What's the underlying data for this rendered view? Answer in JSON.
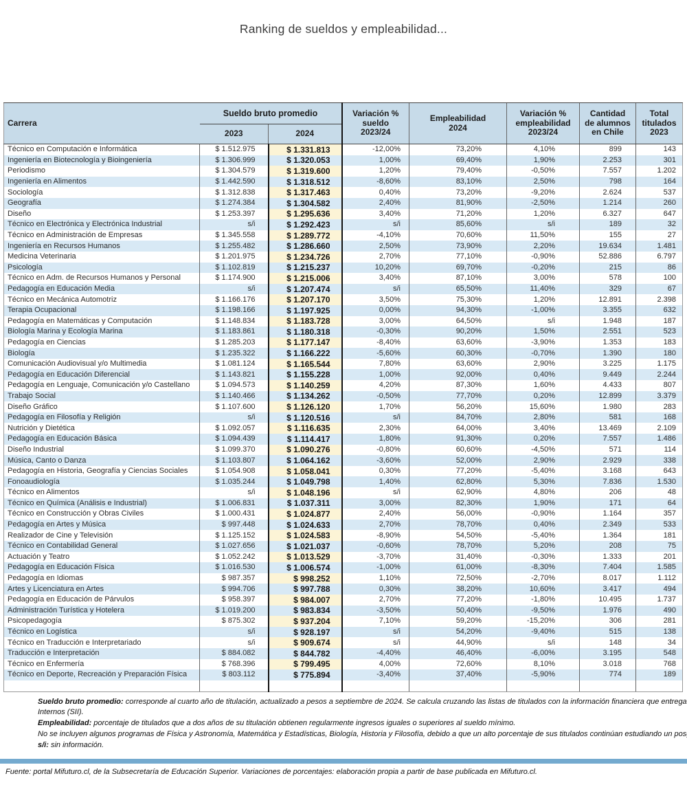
{
  "title": "Ranking de sueldos y empleabilidad...",
  "colors": {
    "header_bg": "#c7dbe9",
    "row_stripe": "#d8e9f5",
    "col2024_highlight": "#fcf4d6",
    "col2024_border": "#111111",
    "separator_bar": "#74aacf"
  },
  "table": {
    "headers": {
      "carrera": "Carrera",
      "sueldo_group": "Sueldo bruto promedio",
      "y2023": "2023",
      "y2024": "2024",
      "var_sueldo": "Variación %\nsueldo\n2023/24",
      "empleabilidad": "Empleabilidad\n2024",
      "var_empleabilidad": "Variación %\nempleabilidad\n2023/24",
      "alumnos": "Cantidad\nde alumnos\nen Chile",
      "titulados": "Total\ntitulados\n2023"
    },
    "rows": [
      [
        "Técnico en Computación e Informática",
        "$ 1.512.975",
        "$ 1.331.813",
        "-12,00%",
        "73,20%",
        "4,10%",
        "899",
        "143"
      ],
      [
        "Ingeniería en Biotecnología y Bioingeniería",
        "$ 1.306.999",
        "$ 1.320.053",
        "1,00%",
        "69,40%",
        "1,90%",
        "2.253",
        "301"
      ],
      [
        "Periodismo",
        "$ 1.304.579",
        "$ 1.319.600",
        "1,20%",
        "79,40%",
        "-0,50%",
        "7.557",
        "1.202"
      ],
      [
        "Ingeniería en Alimentos",
        "$ 1.442.590",
        "$ 1.318.512",
        "-8,60%",
        "83,10%",
        "2,50%",
        "798",
        "164"
      ],
      [
        "Sociología",
        "$ 1.312.838",
        "$ 1.317.463",
        "0,40%",
        "73,20%",
        "-9,20%",
        "2.624",
        "537"
      ],
      [
        "Geografía",
        "$ 1.274.384",
        "$ 1.304.582",
        "2,40%",
        "81,90%",
        "-2,50%",
        "1.214",
        "260"
      ],
      [
        "Diseño",
        "$ 1.253.397",
        "$ 1.295.636",
        "3,40%",
        "71,20%",
        "1,20%",
        "6.327",
        "647"
      ],
      [
        "Técnico en Electrónica y Electrónica Industrial",
        "s/i",
        "$ 1.292.423",
        "s/i",
        "85,60%",
        "s/i",
        "189",
        "32"
      ],
      [
        "Técnico en Administración de Empresas",
        "$ 1.345.558",
        "$ 1.289.772",
        "-4,10%",
        "70,60%",
        "11,50%",
        "155",
        "27"
      ],
      [
        "Ingeniería en Recursos Humanos",
        "$ 1.255.482",
        "$ 1.286.660",
        "2,50%",
        "73,90%",
        "2,20%",
        "19.634",
        "1.481"
      ],
      [
        "Medicina Veterinaria",
        "$ 1.201.975",
        "$ 1.234.726",
        "2,70%",
        "77,10%",
        "-0,90%",
        "52.886",
        "6.797"
      ],
      [
        "Psicología",
        "$ 1.102.819",
        "$ 1.215.237",
        "10,20%",
        "69,70%",
        "-0,20%",
        "215",
        "86"
      ],
      [
        "Técnico en Adm. de Recursos Humanos y Personal",
        "$ 1.174.900",
        "$ 1.215.006",
        "3,40%",
        "87,10%",
        "3,00%",
        "578",
        "100"
      ],
      [
        "Pedagogía en Educación Media",
        "s/i",
        "$ 1.207.474",
        "s/i",
        "65,50%",
        "11,40%",
        "329",
        "67"
      ],
      [
        "Técnico en Mecánica Automotriz",
        "$ 1.166.176",
        "$ 1.207.170",
        "3,50%",
        "75,30%",
        "1,20%",
        "12.891",
        "2.398"
      ],
      [
        "Terapia Ocupacional",
        "$ 1.198.166",
        "$ 1.197.925",
        "0,00%",
        "94,30%",
        "-1,00%",
        "3.355",
        "632"
      ],
      [
        "Pedagogía en Matemáticas y Computación",
        "$ 1.148.834",
        "$ 1.183.728",
        "3,00%",
        "64,50%",
        "s/i",
        "1.948",
        "187"
      ],
      [
        "Biología Marina y Ecología Marina",
        "$ 1.183.861",
        "$ 1.180.318",
        "-0,30%",
        "90,20%",
        "1,50%",
        "2.551",
        "523"
      ],
      [
        "Pedagogía en Ciencias",
        "$ 1.285.203",
        "$ 1.177.147",
        "-8,40%",
        "63,60%",
        "-3,90%",
        "1.353",
        "183"
      ],
      [
        "Biología",
        "$ 1.235.322",
        "$ 1.166.222",
        "-5,60%",
        "60,30%",
        "-0,70%",
        "1.390",
        "180"
      ],
      [
        "Comunicación Audiovisual y/o Multimedia",
        "$ 1.081.124",
        "$ 1.165.544",
        "7,80%",
        "63,60%",
        "2,90%",
        "3.225",
        "1.175"
      ],
      [
        "Pedagogía en Educación Diferencial",
        "$ 1.143.821",
        "$ 1.155.228",
        "1,00%",
        "92,00%",
        "0,40%",
        "9.449",
        "2.244"
      ],
      [
        "Pedagogía en Lenguaje, Comunicación y/o Castellano",
        "$ 1.094.573",
        "$ 1.140.259",
        "4,20%",
        "87,30%",
        "1,60%",
        "4.433",
        "807"
      ],
      [
        "Trabajo Social",
        "$ 1.140.466",
        "$ 1.134.262",
        "-0,50%",
        "77,70%",
        "0,20%",
        "12.899",
        "3.379"
      ],
      [
        "Diseño Gráfico",
        "$ 1.107.600",
        "$ 1.126.120",
        "1,70%",
        "56,20%",
        "15,60%",
        "1.980",
        "283"
      ],
      [
        "Pedagogía en Filosofía y Religión",
        "s/i",
        "$ 1.120.516",
        "s/i",
        "84,70%",
        "2,80%",
        "581",
        "168"
      ],
      [
        "Nutrición y Dietética",
        "$ 1.092.057",
        "$ 1.116.635",
        "2,30%",
        "64,00%",
        "3,40%",
        "13.469",
        "2.109"
      ],
      [
        "Pedagogía en Educación Básica",
        "$ 1.094.439",
        "$ 1.114.417",
        "1,80%",
        "91,30%",
        "0,20%",
        "7.557",
        "1.486"
      ],
      [
        "Diseño Industrial",
        "$ 1.099.370",
        "$ 1.090.276",
        "-0,80%",
        "60,60%",
        "-4,50%",
        "571",
        "114"
      ],
      [
        "Música, Canto o Danza",
        "$ 1.103.807",
        "$ 1.064.162",
        "-3,60%",
        "52,00%",
        "2,90%",
        "2.929",
        "338"
      ],
      [
        "Pedagogía en Historia, Geografía y Ciencias Sociales",
        "$ 1.054.908",
        "$ 1.058.041",
        "0,30%",
        "77,20%",
        "-5,40%",
        "3.168",
        "643"
      ],
      [
        "Fonoaudiología",
        "$ 1.035.244",
        "$ 1.049.798",
        "1,40%",
        "62,80%",
        "5,30%",
        "7.836",
        "1.530"
      ],
      [
        "Técnico en Alimentos",
        "s/i",
        "$ 1.048.196",
        "s/i",
        "62,90%",
        "4,80%",
        "206",
        "48"
      ],
      [
        "Técnico en Química (Análisis e Industrial)",
        "$ 1.006.831",
        "$ 1.037.311",
        "3,00%",
        "82,30%",
        "1,90%",
        "171",
        "64"
      ],
      [
        "Técnico en Construcción y Obras Civiles",
        "$ 1.000.431",
        "$ 1.024.877",
        "2,40%",
        "56,00%",
        "-0,90%",
        "1.164",
        "357"
      ],
      [
        "Pedagogía en Artes y Música",
        "$ 997.448",
        "$ 1.024.633",
        "2,70%",
        "78,70%",
        "0,40%",
        "2.349",
        "533"
      ],
      [
        "Realizador de Cine y Televisión",
        "$ 1.125.152",
        "$ 1.024.583",
        "-8,90%",
        "54,50%",
        "-5,40%",
        "1.364",
        "181"
      ],
      [
        "Técnico en Contabilidad General",
        "$ 1.027.656",
        "$ 1.021.037",
        "-0,60%",
        "78,70%",
        "5,20%",
        "208",
        "75"
      ],
      [
        "Actuación y Teatro",
        "$ 1.052.242",
        "$ 1.013.529",
        "-3,70%",
        "31,40%",
        "-0,30%",
        "1.333",
        "201"
      ],
      [
        "Pedagogía en Educación Física",
        "$ 1.016.530",
        "$ 1.006.574",
        "-1,00%",
        "61,00%",
        "-8,30%",
        "7.404",
        "1.585"
      ],
      [
        "Pedagogía en Idiomas",
        "$ 987.357",
        "$ 998.252",
        "1,10%",
        "72,50%",
        "-2,70%",
        "8.017",
        "1.112"
      ],
      [
        "Artes y Licenciatura en Artes",
        "$ 994.706",
        "$ 997.788",
        "0,30%",
        "38,20%",
        "10,60%",
        "3.417",
        "494"
      ],
      [
        "Pedagogía en Educación de Párvulos",
        "$ 958.397",
        "$ 984.007",
        "2,70%",
        "77,20%",
        "-1,80%",
        "10.495",
        "1.737"
      ],
      [
        "Administración Turística y Hotelera",
        "$ 1.019.200",
        "$ 983.834",
        "-3,50%",
        "50,40%",
        "-9,50%",
        "1.976",
        "490"
      ],
      [
        "Psicopedagogía",
        "$ 875.302",
        "$ 937.204",
        "7,10%",
        "59,20%",
        "-15,20%",
        "306",
        "281"
      ],
      [
        "Técnico en Logística",
        "s/i",
        "$ 928.197",
        "s/i",
        "54,20%",
        "-9,40%",
        "515",
        "138"
      ],
      [
        "Técnico en Traducción e Interpretariado",
        "s/i",
        "$ 909.674",
        "s/i",
        "44,90%",
        "s/i",
        "148",
        "34"
      ],
      [
        "Traducción e Interpretación",
        "$ 884.082",
        "$ 844.782",
        "-4,40%",
        "46,40%",
        "-6,00%",
        "3.195",
        "548"
      ],
      [
        "Técnico en Enfermería",
        "$ 768.396",
        "$ 799.495",
        "4,00%",
        "72,60%",
        "8,10%",
        "3.018",
        "768"
      ],
      [
        "Técnico en Deporte, Recreación y Preparación Física",
        "$ 803.112",
        "$ 775.894",
        "-3,40%",
        "37,40%",
        "-5,90%",
        "774",
        "189"
      ]
    ]
  },
  "footnotes": {
    "sueldo_lead": "Sueldo bruto promedio:",
    "sueldo_text": " corresponde al cuarto año de titulación, actualizado a pesos a septiembre de 2024. Se calcula cruzando las listas de titulados con la información financiera que entrega al Servicio de Impuestos Internos (SII).",
    "empleabilidad_lead": "Empleabilidad:",
    "empleabilidad_text": " porcentaje de titulados que a dos años de su titulación obtienen regularmente ingresos iguales o superiores al sueldo mínimo.",
    "exclusiones_text": "No se incluyen algunos programas de Física y Astronomía, Matemática y Estadísticas, Biología, Historia y Filosofía, debido a que un alto porcentaje de sus titulados continúan estudiando un posgrado.",
    "si_lead": "s/i:",
    "si_text": " sin información."
  },
  "source": "Fuente: portal Mifuturo.cl, de la Subsecretaría de Educación Superior. Variaciones de porcentajes: elaboración propia a partir de base publicada en Mifuturo.cl."
}
